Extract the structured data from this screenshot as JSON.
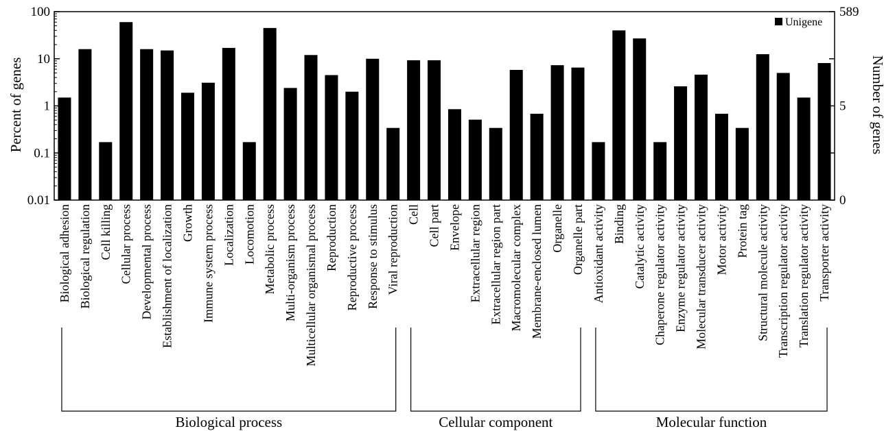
{
  "chart_data": {
    "type": "bar",
    "ylabel": "Percent of genes",
    "ylabel_right": "Number of genes",
    "yscale": "log",
    "ylim": [
      0.01,
      100
    ],
    "yticks": [
      {
        "value": 100,
        "label": "100"
      },
      {
        "value": 10,
        "label": "10"
      },
      {
        "value": 1,
        "label": "1"
      },
      {
        "value": 0.1,
        "label": "0.1"
      },
      {
        "value": 0.01,
        "label": "0.01"
      }
    ],
    "right_ticks": [
      {
        "at_percent": 100,
        "label": "589"
      },
      {
        "at_percent": 1,
        "label": "5"
      },
      {
        "at_percent": 0.01,
        "label": "0"
      }
    ],
    "legend": {
      "position": "top-right",
      "label": "Unigene"
    },
    "series": [
      {
        "name": "Unigene",
        "color": "#000000"
      }
    ],
    "groups": [
      {
        "label": "Biological process",
        "start": 0,
        "end": 16
      },
      {
        "label": "Cellular component",
        "start": 17,
        "end": 25
      },
      {
        "label": "Molecular function",
        "start": 26,
        "end": 37
      }
    ],
    "categories": [
      "Biological adhesion",
      "Biological regulation",
      "Cell killing",
      "Cellular process",
      "Developmental process",
      "Establishment of localization",
      "Growth",
      "Immune system process",
      "Localization",
      "Locomotion",
      "Metabolic process",
      "Multi-organism process",
      "Multicellular organismal process",
      "Reproduction",
      "Reproductive process",
      "Response to stimulus",
      "Viral reproduction",
      "Cell",
      "Cell part",
      "Envelope",
      "Extracellular region",
      "Extracellular region part",
      "Macromolecular complex",
      "Membrane-enclosed lumen",
      "Organelle",
      "Organelle part",
      "Antioxidant activity",
      "Binding",
      "Catalytic activity",
      "Chaperone regulator activity",
      "Enzyme regulator activity",
      "Molecular transducer activity",
      "Motor activity",
      "Protein tag",
      "Structural molecule activity",
      "Transcription regulator activity",
      "Translation regulator activity",
      "Transporter activity"
    ],
    "values": [
      1.5,
      16,
      0.17,
      60,
      16,
      15,
      1.9,
      3.1,
      17,
      0.17,
      45,
      2.4,
      12,
      4.5,
      2.0,
      10,
      0.34,
      9.3,
      9.3,
      0.85,
      0.51,
      0.34,
      5.8,
      0.68,
      7.3,
      6.5,
      0.17,
      40,
      27,
      0.17,
      2.6,
      4.6,
      0.68,
      0.34,
      12.5,
      5.0,
      1.5,
      8.1
    ]
  }
}
